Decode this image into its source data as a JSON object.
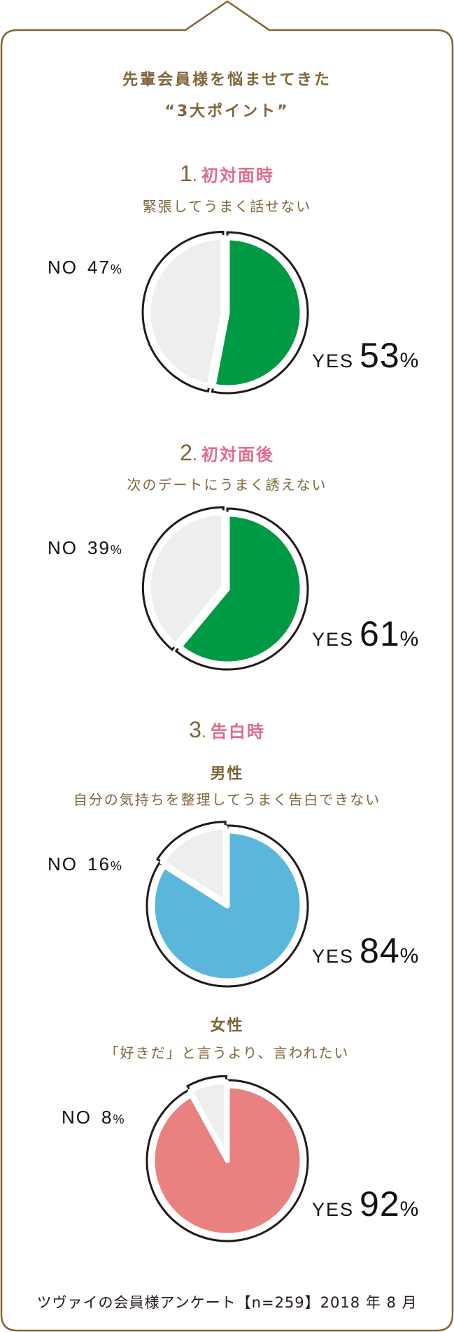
{
  "header": {
    "title_line1": "先輩会員様を悩ませてきた",
    "title_line2": "“3大ポイント”"
  },
  "colors": {
    "frame": "#7f6539",
    "heading_pink": "#e06c8b",
    "yes_green": "#009944",
    "yes_blue": "#5ab7db",
    "yes_pink": "#e98180",
    "no_gray": "#eeeeee",
    "outline": "#231815"
  },
  "sections": [
    {
      "number": "1",
      "title": "初対面時",
      "subtitle": "緊張してうまく話せない",
      "no_label": "NO",
      "no_value": "47",
      "yes_label": "YES",
      "yes_value": "53",
      "pct": "%"
    },
    {
      "number": "2",
      "title": "初対面後",
      "subtitle": "次のデートにうまく誘えない",
      "no_label": "NO",
      "no_value": "39",
      "yes_label": "YES",
      "yes_value": "61",
      "pct": "%"
    },
    {
      "number": "3",
      "title": "告白時",
      "groups": [
        {
          "gender": "男性",
          "subtitle": "自分の気持ちを整理してうまく告白できない",
          "no_label": "NO",
          "no_value": "16",
          "yes_label": "YES",
          "yes_value": "84",
          "pct": "%"
        },
        {
          "gender": "女性",
          "subtitle": "「好きだ」と言うより、言われたい",
          "no_label": "NO",
          "no_value": "8",
          "yes_label": "YES",
          "yes_value": "92",
          "pct": "%"
        }
      ]
    }
  ],
  "footer": {
    "source": "ツヴァイの会員様アンケート【n=259】2018 年 8 月"
  },
  "chart_data": [
    {
      "type": "pie",
      "title": "1. 初対面時 — 緊張してうまく話せない",
      "categories": [
        "YES",
        "NO"
      ],
      "values": [
        53,
        47
      ],
      "colors": [
        "#009944",
        "#eeeeee"
      ],
      "unit": "%"
    },
    {
      "type": "pie",
      "title": "2. 初対面後 — 次のデートにうまく誘えない",
      "categories": [
        "YES",
        "NO"
      ],
      "values": [
        61,
        39
      ],
      "colors": [
        "#009944",
        "#eeeeee"
      ],
      "unit": "%"
    },
    {
      "type": "pie",
      "title": "3. 告白時 男性 — 自分の気持ちを整理してうまく告白できない",
      "categories": [
        "YES",
        "NO"
      ],
      "values": [
        84,
        16
      ],
      "colors": [
        "#5ab7db",
        "#eeeeee"
      ],
      "unit": "%"
    },
    {
      "type": "pie",
      "title": "3. 告白時 女性 — 「好きだ」と言うより、言われたい",
      "categories": [
        "YES",
        "NO"
      ],
      "values": [
        92,
        8
      ],
      "colors": [
        "#e98180",
        "#eeeeee"
      ],
      "unit": "%"
    }
  ]
}
